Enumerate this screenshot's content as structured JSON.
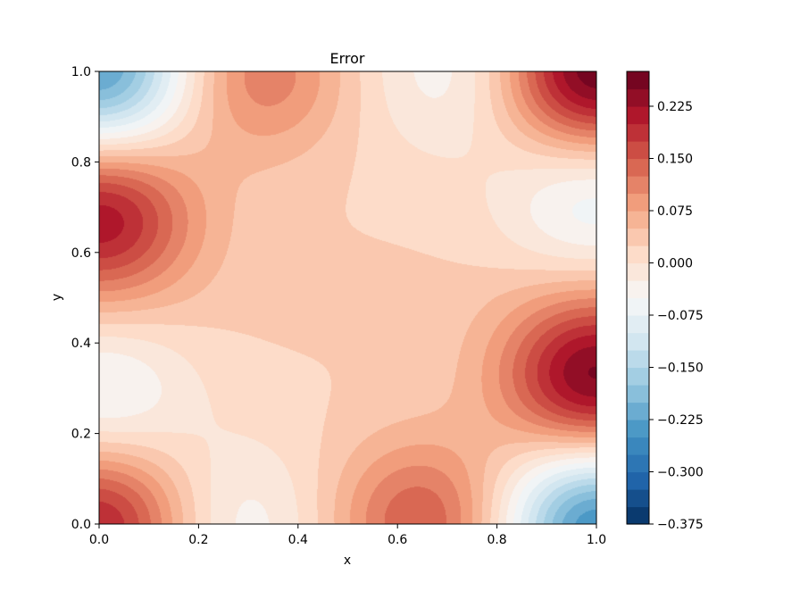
{
  "chart_data": {
    "type": "heatmap",
    "title": "Error",
    "xlabel": "x",
    "ylabel": "y",
    "xlim": [
      0.0,
      1.0
    ],
    "ylim": [
      0.0,
      1.0
    ],
    "x_ticks": [
      "0.0",
      "0.2",
      "0.4",
      "0.6",
      "0.8",
      "1.0"
    ],
    "y_ticks": [
      "0.0",
      "0.2",
      "0.4",
      "0.6",
      "0.8",
      "1.0"
    ],
    "colormap": "RdBu_r",
    "grid": false,
    "colorbar": {
      "range": [
        -0.375,
        0.275
      ],
      "ticks": [
        "−0.375",
        "−0.300",
        "−0.225",
        "−0.150",
        "−0.075",
        "0.000",
        "0.075",
        "0.150",
        "0.225"
      ],
      "tick_values": [
        -0.375,
        -0.3,
        -0.225,
        -0.15,
        -0.075,
        0.0,
        0.075,
        0.15,
        0.225
      ],
      "levels": 26
    },
    "features": [
      {
        "region": "left edge",
        "x": 0.0,
        "y": 0.68,
        "value": 0.2,
        "sign": "positive"
      },
      {
        "region": "right edge",
        "x": 1.0,
        "y": 0.32,
        "value": 0.24,
        "sign": "positive"
      },
      {
        "region": "top-left corner",
        "x": 0.0,
        "y": 1.0,
        "value": -0.25,
        "sign": "negative"
      },
      {
        "region": "bottom-right corner",
        "x": 1.0,
        "y": 0.0,
        "value": -0.27,
        "sign": "negative"
      },
      {
        "region": "top-right corner",
        "x": 1.0,
        "y": 1.0,
        "value": 0.27,
        "sign": "positive"
      },
      {
        "region": "bottom-left corner",
        "x": 0.0,
        "y": 0.0,
        "value": 0.2,
        "sign": "positive"
      },
      {
        "region": "top edge",
        "x": 0.32,
        "y": 1.0,
        "value": 0.11,
        "sign": "positive"
      },
      {
        "region": "bottom edge",
        "x": 0.65,
        "y": 0.0,
        "value": 0.14,
        "sign": "positive"
      },
      {
        "region": "right edge upper",
        "x": 1.0,
        "y": 0.72,
        "value": -0.1,
        "sign": "negative"
      },
      {
        "region": "left edge lower",
        "x": 0.0,
        "y": 0.28,
        "value": -0.09,
        "sign": "negative"
      },
      {
        "region": "top edge right",
        "x": 0.72,
        "y": 1.0,
        "value": -0.06,
        "sign": "negative"
      },
      {
        "region": "bottom edge left",
        "x": 0.27,
        "y": 0.0,
        "value": -0.06,
        "sign": "negative"
      }
    ]
  },
  "colors": {
    "colormap_stops": [
      "#053061",
      "#2166ac",
      "#4393c3",
      "#92c5de",
      "#d1e5f0",
      "#f7f7f7",
      "#fddbc7",
      "#f4a582",
      "#d6604d",
      "#b2182b",
      "#67001f"
    ]
  }
}
